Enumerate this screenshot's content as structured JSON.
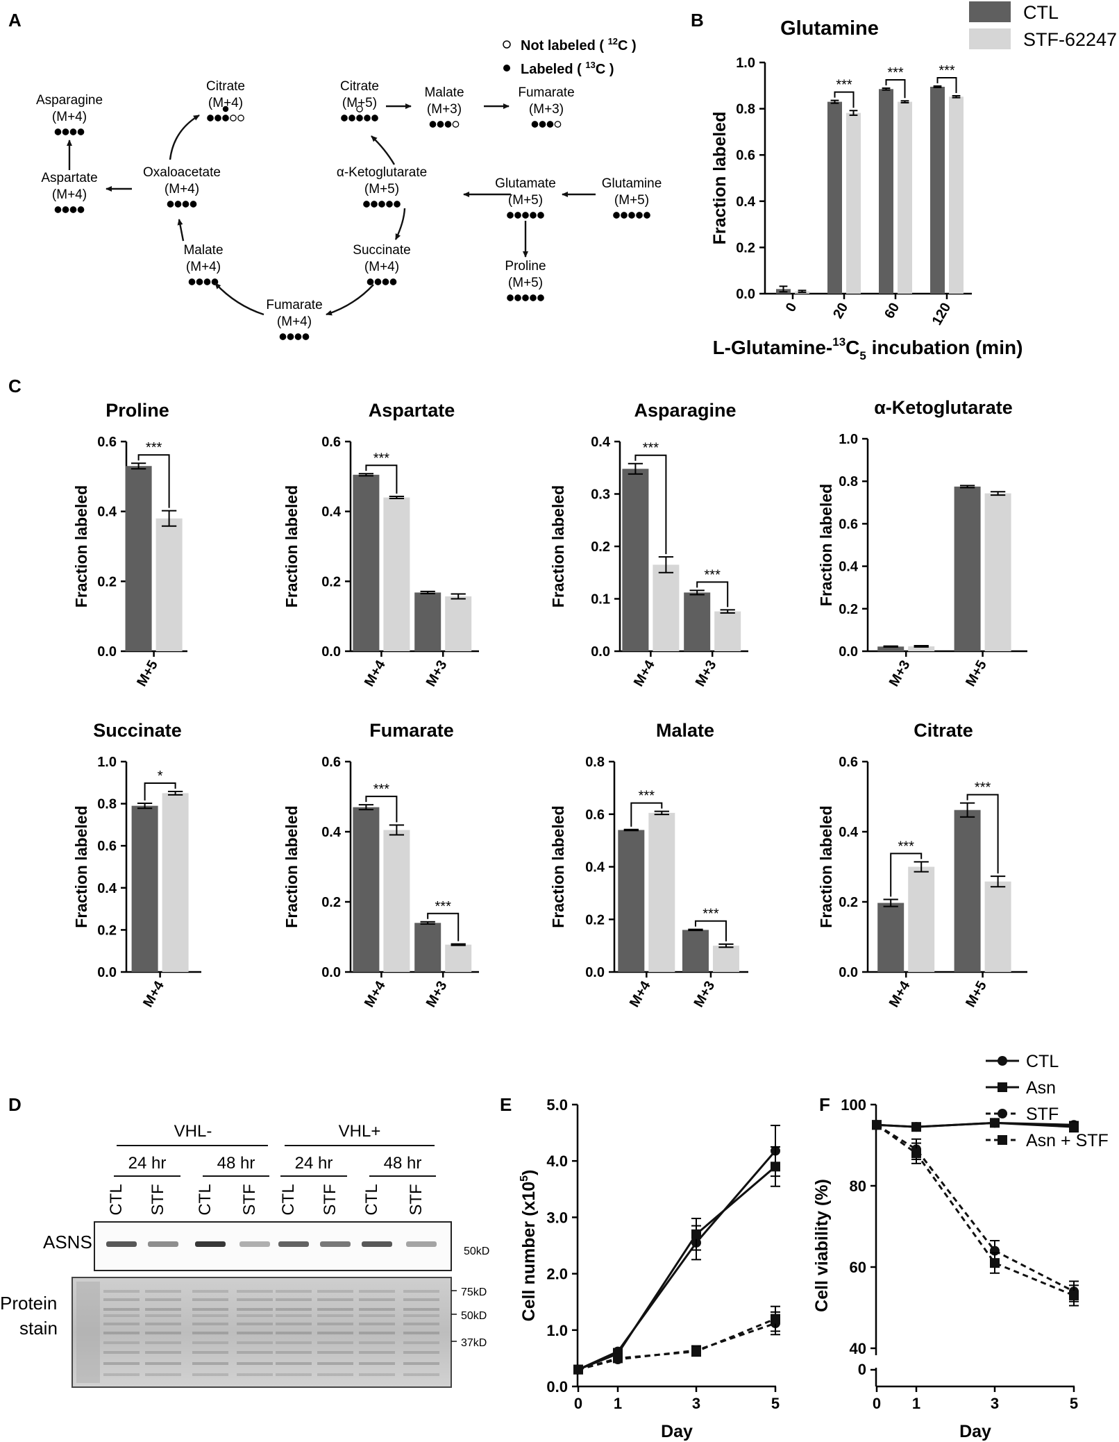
{
  "colors": {
    "ctl": "#5f5f5f",
    "stf": "#d6d6d6",
    "line": "#111111"
  },
  "panel_letters": {
    "a": "A",
    "b": "B",
    "c": "C",
    "d": "D",
    "e": "E",
    "f": "F"
  },
  "pathway": {
    "legend": {
      "unlabeled": "Not labeled ( ",
      "unlabeled_iso": "12",
      "unlabeled_el": "C )",
      "labeled": "Labeled ( ",
      "labeled_iso": "13",
      "labeled_el": "C )"
    },
    "nodes": [
      {
        "name": "Asparagine",
        "iso": "(M+4)",
        "dots": "4"
      },
      {
        "name": "Aspartate",
        "iso": "(M+4)",
        "dots": "4"
      },
      {
        "name": "Oxaloacetate",
        "iso": "(M+4)",
        "dots": "4"
      },
      {
        "name": "Citrate",
        "iso": "(M+4)",
        "dots": "4+2o"
      },
      {
        "name": "Malate",
        "iso": "(M+4)",
        "dots": "4"
      },
      {
        "name": "Fumarate",
        "iso": "(M+4)",
        "dots": "4"
      },
      {
        "name": "Succinate",
        "iso": "(M+4)",
        "dots": "4"
      },
      {
        "name": "α-Ketoglutarate",
        "iso": "(M+5)",
        "dots": "5"
      },
      {
        "name": "Citrate",
        "iso": "(M+5)",
        "dots": "5+1o"
      },
      {
        "name": "Malate",
        "iso": "(M+3)",
        "dots": "3+1o"
      },
      {
        "name": "Fumarate",
        "iso": "(M+3)",
        "dots": "3+1o"
      },
      {
        "name": "Glutamate",
        "iso": "(M+5)",
        "dots": "5"
      },
      {
        "name": "Glutamine",
        "iso": "(M+5)",
        "dots": "5"
      },
      {
        "name": "Proline",
        "iso": "(M+5)",
        "dots": "5"
      }
    ]
  },
  "legend_main": {
    "ctl": "CTL",
    "stf": "STF-62247"
  },
  "western": {
    "group1": "VHL-",
    "group2": "VHL+",
    "times": [
      "24 hr",
      "48 hr",
      "24 hr",
      "48 hr"
    ],
    "lanes": [
      "CTL",
      "STF",
      "CTL",
      "STF",
      "CTL",
      "STF",
      "CTL",
      "STF"
    ],
    "asns_label": "ASNS",
    "asns_mw": "50kD",
    "stain_label1": "Protein",
    "stain_label2": "stain",
    "stain_mw": [
      "75kD",
      "50kD",
      "37kD"
    ]
  },
  "line_legend": {
    "ctl": "CTL",
    "asn": "Asn",
    "stf": "STF",
    "asn_stf": "Asn + STF"
  },
  "chart_data": [
    {
      "panel": "B",
      "type": "bar",
      "title": "Glutamine",
      "categories": [
        "0",
        "20",
        "60",
        "120"
      ],
      "series": [
        {
          "name": "CTL",
          "values": [
            0.02,
            0.83,
            0.885,
            0.895
          ],
          "err": [
            0.012,
            0.006,
            0.004,
            0.003
          ]
        },
        {
          "name": "STF-62247",
          "values": [
            0.01,
            0.782,
            0.83,
            0.852
          ],
          "err": [
            0.004,
            0.01,
            0.004,
            0.004
          ]
        }
      ],
      "ylabel": "Fraction labeled",
      "xlabel_pre": "L-Glutamine-",
      "xlabel_iso": "13",
      "xlabel_el": "C",
      "xlabel_sub": "5",
      "xlabel_post": " incubation (min)",
      "ylim": [
        0,
        1.0
      ],
      "yticks": [
        "0.0",
        "0.2",
        "0.4",
        "0.6",
        "0.8",
        "1.0"
      ],
      "sig": [
        "",
        "***",
        "***",
        "***"
      ]
    },
    {
      "panel": "C",
      "type": "bar",
      "title": "Proline",
      "categories": [
        "M+5"
      ],
      "series": [
        {
          "name": "CTL",
          "values": [
            0.53
          ],
          "err": [
            0.008
          ]
        },
        {
          "name": "STF-62247",
          "values": [
            0.38
          ],
          "err": [
            0.022
          ]
        }
      ],
      "ylabel": "Fraction labeled",
      "ylim": [
        0,
        0.6
      ],
      "yticks": [
        "0.0",
        "0.2",
        "0.4",
        "0.6"
      ],
      "sig": [
        "***"
      ]
    },
    {
      "panel": "C",
      "type": "bar",
      "title": "Aspartate",
      "categories": [
        "M+4",
        "M+3"
      ],
      "series": [
        {
          "name": "CTL",
          "values": [
            0.505,
            0.168
          ],
          "err": [
            0.003,
            0.003
          ]
        },
        {
          "name": "STF-62247",
          "values": [
            0.44,
            0.157
          ],
          "err": [
            0.003,
            0.007
          ]
        }
      ],
      "ylabel": "Fraction labeled",
      "ylim": [
        0,
        0.6
      ],
      "yticks": [
        "0.0",
        "0.2",
        "0.4",
        "0.6"
      ],
      "sig": [
        "***",
        ""
      ]
    },
    {
      "panel": "C",
      "type": "bar",
      "title": "Asparagine",
      "categories": [
        "M+4",
        "M+3"
      ],
      "series": [
        {
          "name": "CTL",
          "values": [
            0.348,
            0.112
          ],
          "err": [
            0.01,
            0.004
          ]
        },
        {
          "name": "STF-62247",
          "values": [
            0.165,
            0.076
          ],
          "err": [
            0.015,
            0.003
          ]
        }
      ],
      "ylabel": "Fraction labeled",
      "ylim": [
        0,
        0.4
      ],
      "yticks": [
        "0.0",
        "0.1",
        "0.2",
        "0.3",
        "0.4"
      ],
      "sig": [
        "***",
        "***"
      ]
    },
    {
      "panel": "C",
      "type": "bar",
      "title": "α-Ketoglutarate",
      "categories": [
        "M+3",
        "M+5"
      ],
      "series": [
        {
          "name": "CTL",
          "values": [
            0.022,
            0.775
          ],
          "err": [
            0.002,
            0.005
          ]
        },
        {
          "name": "STF-62247",
          "values": [
            0.023,
            0.743
          ],
          "err": [
            0.003,
            0.008
          ]
        }
      ],
      "ylabel": "Fraction labeled",
      "ylim": [
        0,
        1.0
      ],
      "yticks": [
        "0.0",
        "0.2",
        "0.4",
        "0.6",
        "0.8",
        "1.0"
      ],
      "sig": [
        "",
        ""
      ]
    },
    {
      "panel": "C",
      "type": "bar",
      "title": "Succinate",
      "categories": [
        "M+4"
      ],
      "series": [
        {
          "name": "CTL",
          "values": [
            0.79
          ],
          "err": [
            0.012
          ]
        },
        {
          "name": "STF-62247",
          "values": [
            0.85
          ],
          "err": [
            0.008
          ]
        }
      ],
      "ylabel": "Fraction labeled",
      "ylim": [
        0,
        1.0
      ],
      "yticks": [
        "0.0",
        "0.2",
        "0.4",
        "0.6",
        "0.8",
        "1.0"
      ],
      "sig": [
        "*"
      ]
    },
    {
      "panel": "C",
      "type": "bar",
      "title": "Fumarate",
      "categories": [
        "M+4",
        "M+3"
      ],
      "series": [
        {
          "name": "CTL",
          "values": [
            0.47,
            0.14
          ],
          "err": [
            0.007,
            0.003
          ]
        },
        {
          "name": "STF-62247",
          "values": [
            0.405,
            0.078
          ],
          "err": [
            0.014,
            0.002
          ]
        }
      ],
      "ylabel": "Fraction labeled",
      "ylim": [
        0,
        0.6
      ],
      "yticks": [
        "0.0",
        "0.2",
        "0.4",
        "0.6"
      ],
      "sig": [
        "***",
        "***"
      ]
    },
    {
      "panel": "C",
      "type": "bar",
      "title": "Malate",
      "categories": [
        "M+4",
        "M+3"
      ],
      "series": [
        {
          "name": "CTL",
          "values": [
            0.54,
            0.16
          ],
          "err": [
            0.002,
            0.002
          ]
        },
        {
          "name": "STF-62247",
          "values": [
            0.605,
            0.1
          ],
          "err": [
            0.006,
            0.006
          ]
        }
      ],
      "ylabel": "Fraction labeled",
      "ylim": [
        0,
        0.8
      ],
      "yticks": [
        "0.0",
        "0.2",
        "0.4",
        "0.6",
        "0.8"
      ],
      "sig": [
        "***",
        "***"
      ]
    },
    {
      "panel": "C",
      "type": "bar",
      "title": "Citrate",
      "categories": [
        "M+4",
        "M+5"
      ],
      "series": [
        {
          "name": "CTL",
          "values": [
            0.197,
            0.462
          ],
          "err": [
            0.01,
            0.02
          ]
        },
        {
          "name": "STF-62247",
          "values": [
            0.3,
            0.258
          ],
          "err": [
            0.014,
            0.015
          ]
        }
      ],
      "ylabel": "Fraction labeled",
      "ylim": [
        0,
        0.6
      ],
      "yticks": [
        "0.0",
        "0.2",
        "0.4",
        "0.6"
      ],
      "sig": [
        "***",
        "***"
      ]
    },
    {
      "panel": "E",
      "type": "line",
      "xlabel": "Day",
      "ylabel_pre": "Cell number (x10",
      "ylabel_sup": "5",
      "ylabel_post": ")",
      "x": [
        0,
        1,
        3,
        5
      ],
      "xticks": [
        "0",
        "1",
        "3",
        "5"
      ],
      "ylim": [
        0,
        5.0
      ],
      "yticks": [
        "0.0",
        "1.0",
        "2.0",
        "3.0",
        "4.0",
        "5.0"
      ],
      "series": [
        {
          "name": "CTL",
          "values": [
            0.3,
            0.62,
            2.55,
            4.18
          ],
          "err": [
            0.05,
            0.05,
            0.3,
            0.45
          ],
          "marker": "circle",
          "dash": false
        },
        {
          "name": "Asn",
          "values": [
            0.3,
            0.58,
            2.7,
            3.9
          ],
          "err": [
            0.05,
            0.05,
            0.28,
            0.35
          ],
          "marker": "square",
          "dash": false
        },
        {
          "name": "STF",
          "values": [
            0.3,
            0.48,
            0.64,
            1.12
          ],
          "err": [
            0.05,
            0.05,
            0.08,
            0.2
          ],
          "marker": "circle",
          "dash": true
        },
        {
          "name": "Asn + STF",
          "values": [
            0.3,
            0.5,
            0.62,
            1.2
          ],
          "err": [
            0.05,
            0.05,
            0.08,
            0.22
          ],
          "marker": "square",
          "dash": true
        }
      ]
    },
    {
      "panel": "F",
      "type": "line",
      "xlabel": "Day",
      "ylabel": "Cell viability (%)",
      "x": [
        0,
        1,
        3,
        5
      ],
      "xticks": [
        "0",
        "1",
        "3",
        "5"
      ],
      "ylim": [
        40,
        100
      ],
      "yticks": [
        "40",
        "60",
        "80",
        "100"
      ],
      "ybreak_label": "0",
      "series": [
        {
          "name": "CTL",
          "values": [
            95,
            94.5,
            95.5,
            95
          ],
          "err": [
            0.8,
            0.8,
            0.8,
            0.8
          ],
          "marker": "circle",
          "dash": false
        },
        {
          "name": "Asn",
          "values": [
            95,
            94.5,
            95.5,
            94.5
          ],
          "err": [
            0.8,
            0.8,
            0.8,
            1.2
          ],
          "marker": "square",
          "dash": false
        },
        {
          "name": "STF",
          "values": [
            95,
            89,
            64,
            54
          ],
          "err": [
            0.8,
            2.5,
            2.5,
            2.5
          ],
          "marker": "circle",
          "dash": true
        },
        {
          "name": "Asn + STF",
          "values": [
            95,
            88,
            61,
            53
          ],
          "err": [
            0.8,
            2.5,
            2.5,
            2.5
          ],
          "marker": "square",
          "dash": true
        }
      ]
    }
  ]
}
